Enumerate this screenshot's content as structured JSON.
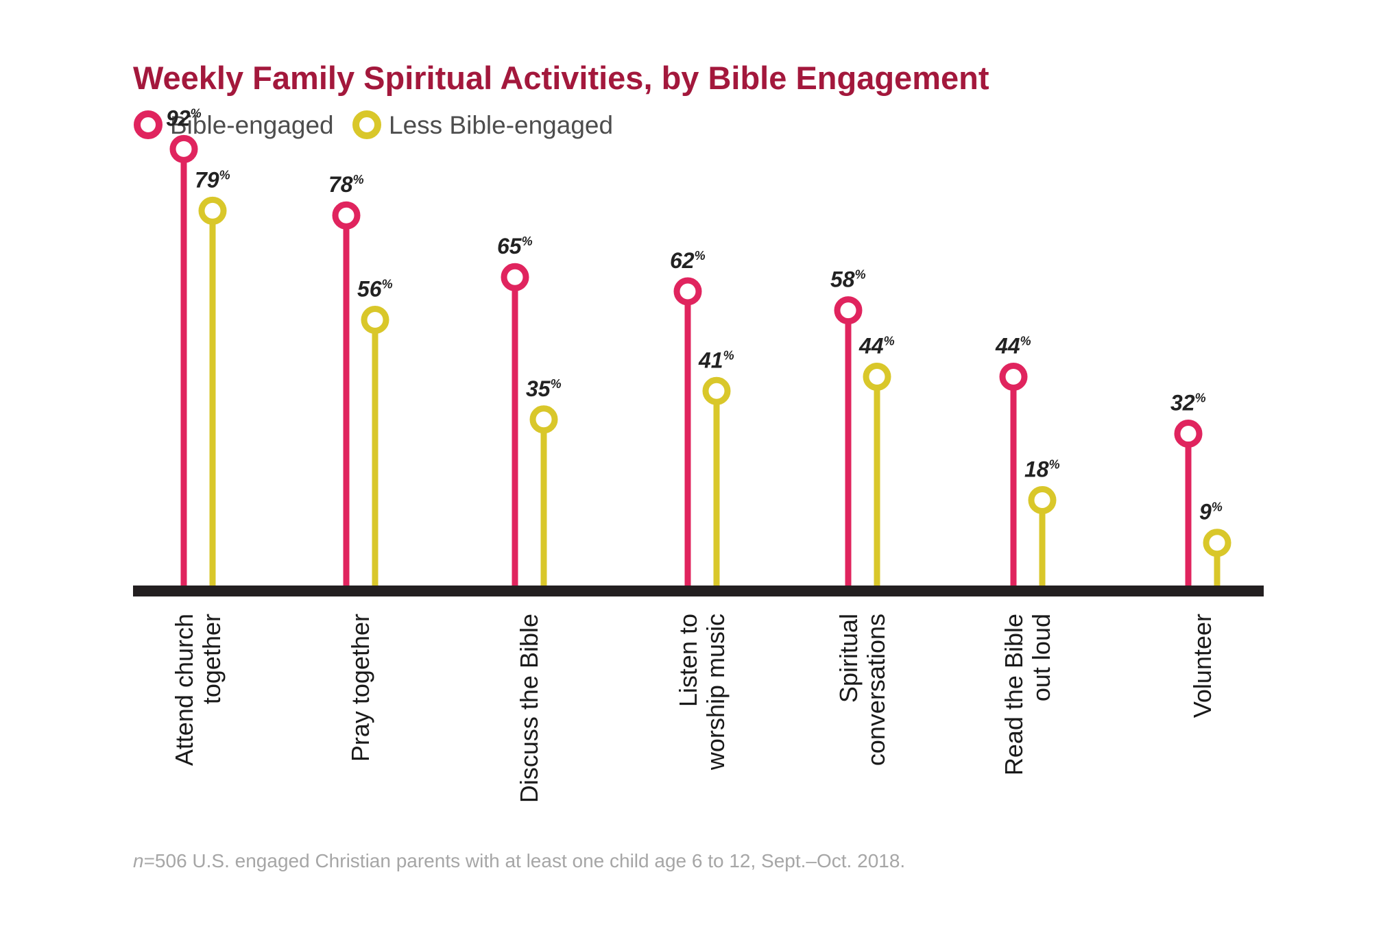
{
  "colors": {
    "title": "#a3183c",
    "bible_engaged": "#e0245e",
    "less_engaged": "#d9c72a",
    "baseline": "#231f20",
    "footnote": "#a6a6a6"
  },
  "legend": [
    {
      "label": "Bible-engaged",
      "color_key": "bible_engaged"
    },
    {
      "label": "Less Bible-engaged",
      "color_key": "less_engaged"
    }
  ],
  "footnote": {
    "n_symbol": "n",
    "text": "=506 U.S. engaged Christian parents with at least one child age 6 to 12, Sept.–Oct. 2018."
  },
  "chart_data": {
    "type": "lollipop",
    "title": "Weekly Family Spiritual Activities, by Bible Engagement",
    "unit_suffix": "%",
    "ylim": [
      0,
      100
    ],
    "grid": false,
    "legend_position": "top-left",
    "categories": [
      [
        "Attend church",
        "together"
      ],
      [
        "Pray together"
      ],
      [
        "Discuss the Bible"
      ],
      [
        "Listen to",
        "worship music"
      ],
      [
        "Spiritual",
        "conversations"
      ],
      [
        "Read the Bible",
        "out loud"
      ],
      [
        "Volunteer"
      ]
    ],
    "series": [
      {
        "name": "Bible-engaged",
        "values": [
          92,
          78,
          65,
          62,
          58,
          44,
          32
        ]
      },
      {
        "name": "Less Bible-engaged",
        "values": [
          79,
          56,
          35,
          41,
          44,
          18,
          9
        ]
      }
    ]
  }
}
